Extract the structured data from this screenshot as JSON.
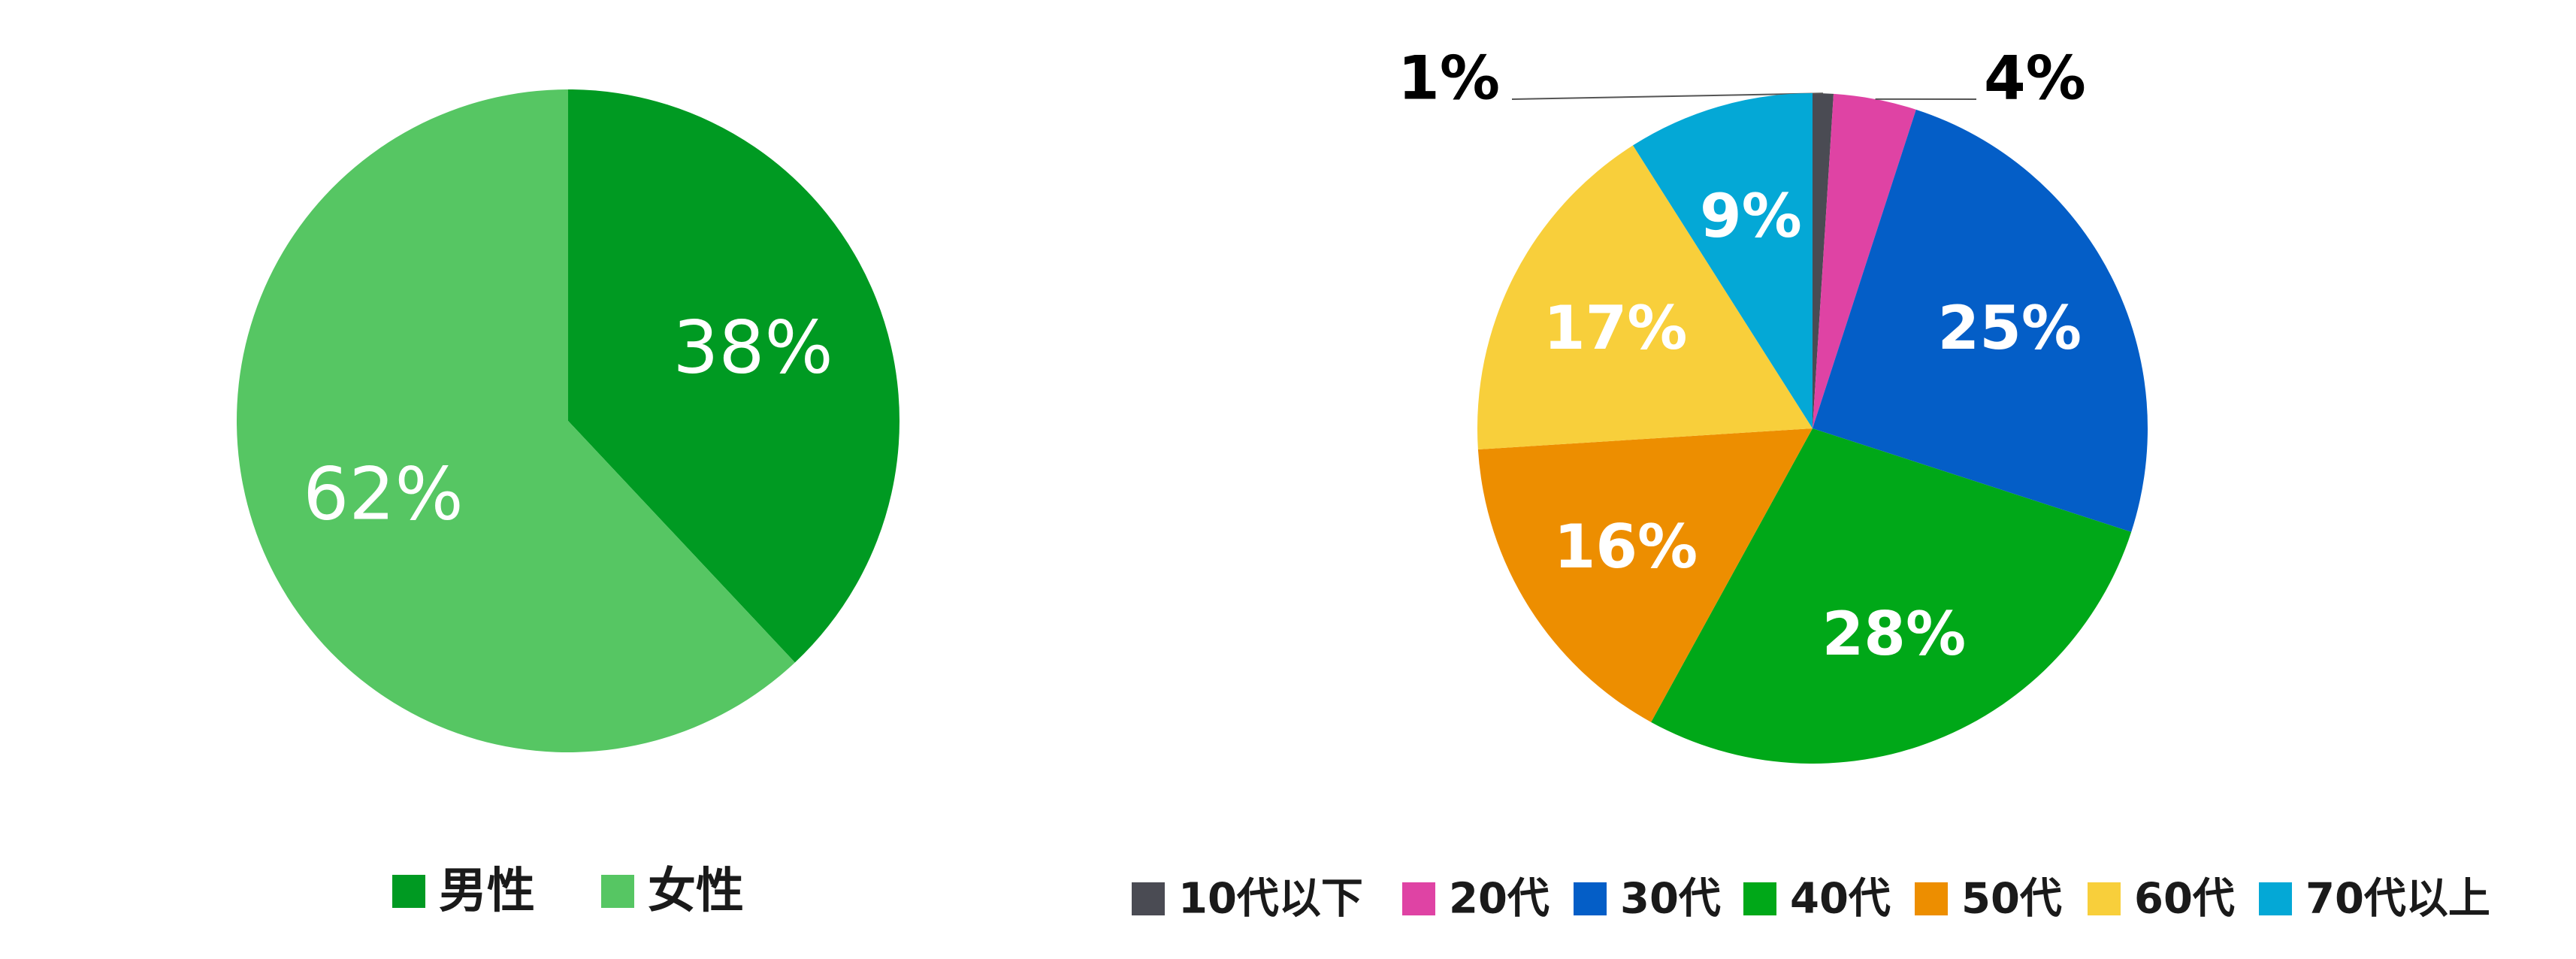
{
  "chart_data": [
    {
      "type": "pie",
      "slices": [
        {
          "label": "男性",
          "value": 38,
          "display": "38%",
          "color": "#009a22"
        },
        {
          "label": "女性",
          "value": 62,
          "display": "62%",
          "color": "#56c663"
        }
      ],
      "legend_placement": "bottom"
    },
    {
      "type": "pie",
      "slices": [
        {
          "label": "10代以下",
          "value": 1,
          "display": "1%",
          "color": "#4a4b53"
        },
        {
          "label": "20代",
          "value": 4,
          "display": "4%",
          "color": "#df43a4"
        },
        {
          "label": "30代",
          "value": 25,
          "display": "25%",
          "color": "#045ec7"
        },
        {
          "label": "40代",
          "value": 28,
          "display": "28%",
          "color": "#00a818"
        },
        {
          "label": "50代",
          "value": 16,
          "display": "16%",
          "color": "#ed8e00"
        },
        {
          "label": "60代",
          "value": 17,
          "display": "17%",
          "color": "#f8cf3b"
        },
        {
          "label": "70代以上",
          "value": 9,
          "display": "9%",
          "color": "#04a8d6"
        }
      ],
      "legend_placement": "bottom"
    }
  ]
}
